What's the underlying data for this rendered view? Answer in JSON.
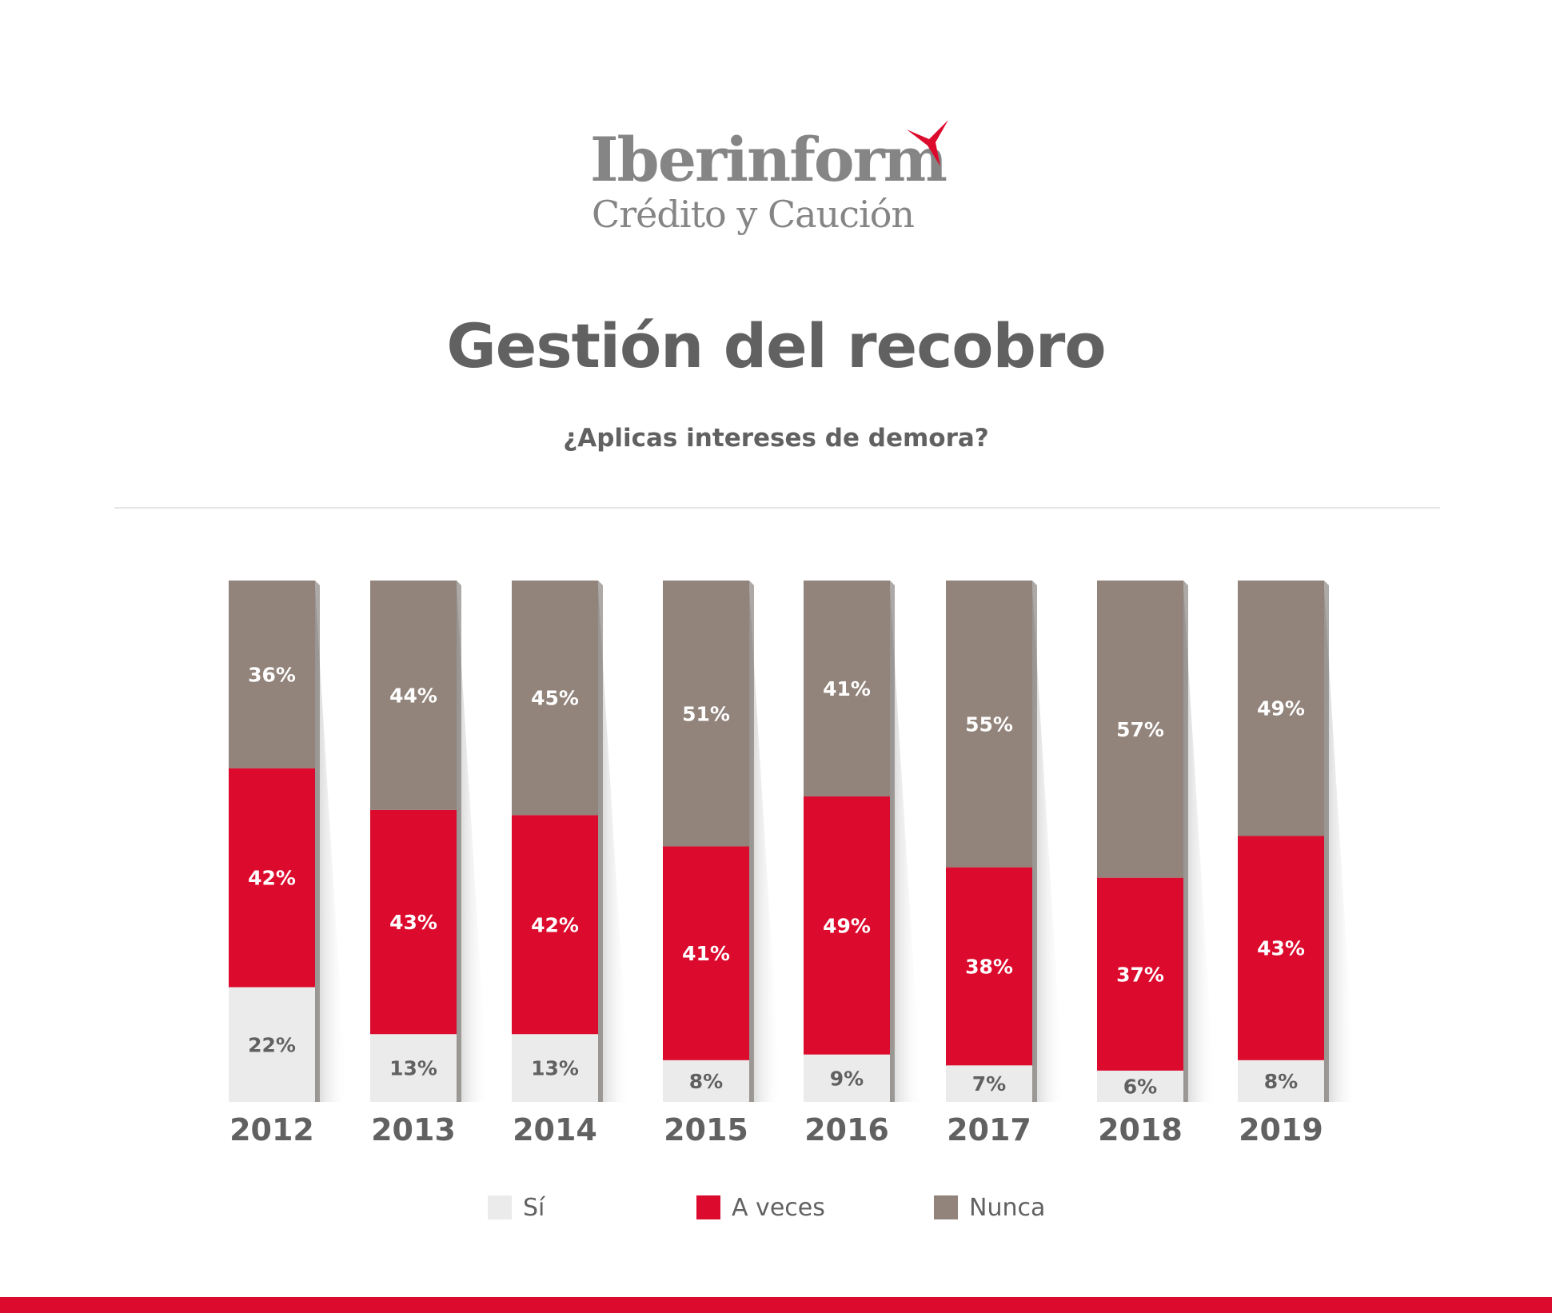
{
  "logo": {
    "brand": "Iberinform",
    "sub": "Crédito y Caución",
    "mark_color": "#dc0a2d"
  },
  "title": "Gestión del recobro",
  "subtitle": "¿Aplicas intereses de demora?",
  "colors": {
    "si": "#ebebeb",
    "a_veces": "#dc0a2d",
    "nunca": "#92837b",
    "text_dark": "#616161",
    "accent": "#dc0a2d"
  },
  "chart_data": {
    "type": "bar",
    "stacked": true,
    "normalized": true,
    "title": "Gestión del recobro",
    "subtitle": "¿Aplicas intereses de demora?",
    "categories": [
      "2012",
      "2013",
      "2014",
      "2015",
      "2016",
      "2017",
      "2018",
      "2019"
    ],
    "series": [
      {
        "name": "Sí",
        "values": [
          22,
          13,
          13,
          8,
          9,
          7,
          6,
          8
        ],
        "labels": [
          "22%",
          "13%",
          "13%",
          "8%",
          "9%",
          "7%",
          "6%",
          "8%"
        ],
        "color": "#ebebeb",
        "label_color": "#616161"
      },
      {
        "name": "A veces",
        "values": [
          42,
          43,
          42,
          41,
          49,
          38,
          37,
          43
        ],
        "labels": [
          "42%",
          "43%",
          "42%",
          "41%",
          "49%",
          "38%",
          "37%",
          "43%"
        ],
        "color": "#dc0a2d",
        "label_color": "#ffffff"
      },
      {
        "name": "Nunca",
        "values": [
          36,
          44,
          45,
          51,
          41,
          55,
          57,
          49
        ],
        "labels": [
          "36%",
          "44%",
          "45%",
          "51%",
          "41%",
          "55%",
          "57%",
          "49%"
        ],
        "color": "#92837b",
        "label_color": "#ffffff"
      }
    ],
    "legend": {
      "position": "bottom",
      "entries": [
        "Sí",
        "A veces",
        "Nunca"
      ]
    },
    "grid": false
  }
}
